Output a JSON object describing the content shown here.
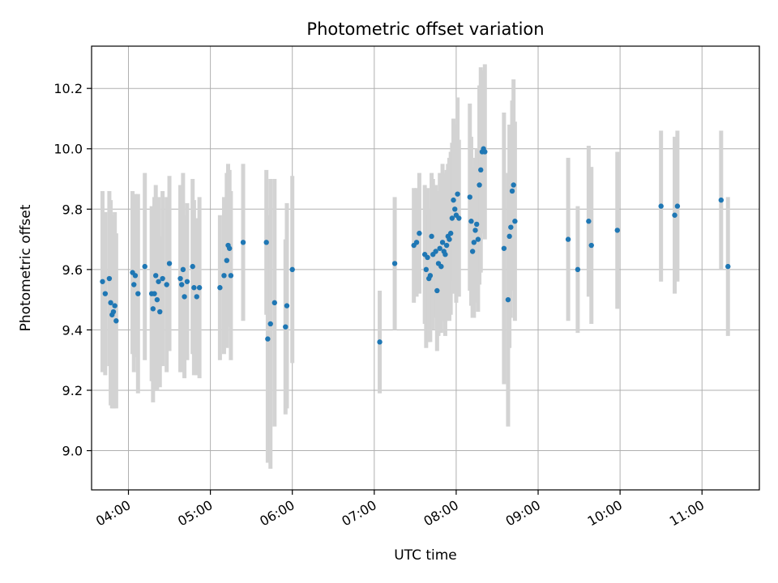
{
  "chart_data": {
    "type": "scatter",
    "title": "Photometric offset variation",
    "xlabel": "UTC time",
    "ylabel": "Photometric offset",
    "x_unit": "UTC time (HH:MM)",
    "xlim": [
      "03:33",
      "11:42"
    ],
    "ylim": [
      8.87,
      10.34
    ],
    "x_ticks": [
      "04:00",
      "05:00",
      "06:00",
      "07:00",
      "08:00",
      "09:00",
      "10:00",
      "11:00"
    ],
    "y_ticks": [
      9.0,
      9.2,
      9.4,
      9.6,
      9.8,
      10.0,
      10.2
    ],
    "grid": true,
    "colors": {
      "points": "#1f77b4",
      "error_bars": "#d3d3d3",
      "grid": "#b0b0b0"
    },
    "series": [
      {
        "columns": [
          "x",
          "y",
          "err"
        ],
        "points": [
          [
            "03:41",
            9.56,
            0.3
          ],
          [
            "03:43",
            9.52,
            0.27
          ],
          [
            "03:46",
            9.57,
            0.29
          ],
          [
            "03:47",
            9.49,
            0.34
          ],
          [
            "03:48",
            9.45,
            0.31
          ],
          [
            "03:49",
            9.46,
            0.32
          ],
          [
            "03:50",
            9.48,
            0.31
          ],
          [
            "03:51",
            9.43,
            0.29
          ],
          [
            "04:03",
            9.59,
            0.27
          ],
          [
            "04:04",
            9.55,
            0.29
          ],
          [
            "04:05",
            9.58,
            0.27
          ],
          [
            "04:07",
            9.52,
            0.33
          ],
          [
            "04:12",
            9.61,
            0.31
          ],
          [
            "04:17",
            9.52,
            0.29
          ],
          [
            "04:18",
            9.47,
            0.31
          ],
          [
            "04:19",
            9.52,
            0.32
          ],
          [
            "04:20",
            9.58,
            0.3
          ],
          [
            "04:21",
            9.5,
            0.3
          ],
          [
            "04:22",
            9.56,
            0.28
          ],
          [
            "04:23",
            9.46,
            0.25
          ],
          [
            "04:25",
            9.57,
            0.29
          ],
          [
            "04:28",
            9.55,
            0.29
          ],
          [
            "04:30",
            9.62,
            0.29
          ],
          [
            "04:38",
            9.57,
            0.31
          ],
          [
            "04:39",
            9.55,
            0.29
          ],
          [
            "04:40",
            9.6,
            0.32
          ],
          [
            "04:41",
            9.51,
            0.27
          ],
          [
            "04:43",
            9.56,
            0.26
          ],
          [
            "04:47",
            9.61,
            0.29
          ],
          [
            "04:48",
            9.54,
            0.29
          ],
          [
            "04:50",
            9.51,
            0.26
          ],
          [
            "04:52",
            9.54,
            0.3
          ],
          [
            "05:07",
            9.54,
            0.24
          ],
          [
            "05:10",
            9.58,
            0.26
          ],
          [
            "05:12",
            9.63,
            0.29
          ],
          [
            "05:13",
            9.68,
            0.27
          ],
          [
            "05:14",
            9.67,
            0.26
          ],
          [
            "05:15",
            9.58,
            0.28
          ],
          [
            "05:24",
            9.69,
            0.26
          ],
          [
            "05:41",
            9.69,
            0.24
          ],
          [
            "05:42",
            9.37,
            0.41
          ],
          [
            "05:44",
            9.42,
            0.48
          ],
          [
            "05:47",
            9.49,
            0.41
          ],
          [
            "05:55",
            9.41,
            0.29
          ],
          [
            "05:56",
            9.48,
            0.34
          ],
          [
            "06:00",
            9.6,
            0.31
          ],
          [
            "07:04",
            9.36,
            0.17
          ],
          [
            "07:15",
            9.62,
            0.22
          ],
          [
            "07:29",
            9.68,
            0.19
          ],
          [
            "07:31",
            9.69,
            0.18
          ],
          [
            "07:33",
            9.72,
            0.2
          ],
          [
            "07:37",
            9.65,
            0.23
          ],
          [
            "07:38",
            9.6,
            0.26
          ],
          [
            "07:39",
            9.64,
            0.23
          ],
          [
            "07:40",
            9.57,
            0.21
          ],
          [
            "07:41",
            9.58,
            0.22
          ],
          [
            "07:42",
            9.71,
            0.21
          ],
          [
            "07:43",
            9.65,
            0.25
          ],
          [
            "07:45",
            9.66,
            0.22
          ],
          [
            "07:46",
            9.53,
            0.2
          ],
          [
            "07:47",
            9.62,
            0.24
          ],
          [
            "07:48",
            9.67,
            0.25
          ],
          [
            "07:49",
            9.61,
            0.22
          ],
          [
            "07:50",
            9.69,
            0.26
          ],
          [
            "07:51",
            9.66,
            0.23
          ],
          [
            "07:52",
            9.65,
            0.27
          ],
          [
            "07:53",
            9.68,
            0.25
          ],
          [
            "07:54",
            9.71,
            0.24
          ],
          [
            "07:55",
            9.7,
            0.27
          ],
          [
            "07:56",
            9.72,
            0.27
          ],
          [
            "07:57",
            9.77,
            0.25
          ],
          [
            "07:58",
            9.83,
            0.27
          ],
          [
            "07:59",
            9.8,
            0.28
          ],
          [
            "08:00",
            9.78,
            0.29
          ],
          [
            "08:01",
            9.85,
            0.32
          ],
          [
            "08:02",
            9.77,
            0.26
          ],
          [
            "08:10",
            9.84,
            0.31
          ],
          [
            "08:11",
            9.76,
            0.28
          ],
          [
            "08:12",
            9.66,
            0.22
          ],
          [
            "08:13",
            9.69,
            0.25
          ],
          [
            "08:14",
            9.73,
            0.24
          ],
          [
            "08:15",
            9.75,
            0.25
          ],
          [
            "08:16",
            9.7,
            0.24
          ],
          [
            "08:17",
            9.88,
            0.33
          ],
          [
            "08:18",
            9.93,
            0.34
          ],
          [
            "08:19",
            9.99,
            0.27
          ],
          [
            "08:20",
            10.0,
            0.26
          ],
          [
            "08:21",
            9.99,
            0.29
          ],
          [
            "08:35",
            9.67,
            0.45
          ],
          [
            "08:38",
            9.5,
            0.42
          ],
          [
            "08:39",
            9.71,
            0.37
          ],
          [
            "08:40",
            9.74,
            0.3
          ],
          [
            "08:41",
            9.86,
            0.3
          ],
          [
            "08:42",
            9.88,
            0.35
          ],
          [
            "08:43",
            9.76,
            0.33
          ],
          [
            "09:22",
            9.7,
            0.27
          ],
          [
            "09:29",
            9.6,
            0.21
          ],
          [
            "09:37",
            9.76,
            0.25
          ],
          [
            "09:39",
            9.68,
            0.26
          ],
          [
            "09:58",
            9.73,
            0.26
          ],
          [
            "10:30",
            9.81,
            0.25
          ],
          [
            "10:40",
            9.78,
            0.26
          ],
          [
            "10:42",
            9.81,
            0.25
          ],
          [
            "11:14",
            9.83,
            0.23
          ],
          [
            "11:19",
            9.61,
            0.23
          ]
        ]
      }
    ]
  }
}
